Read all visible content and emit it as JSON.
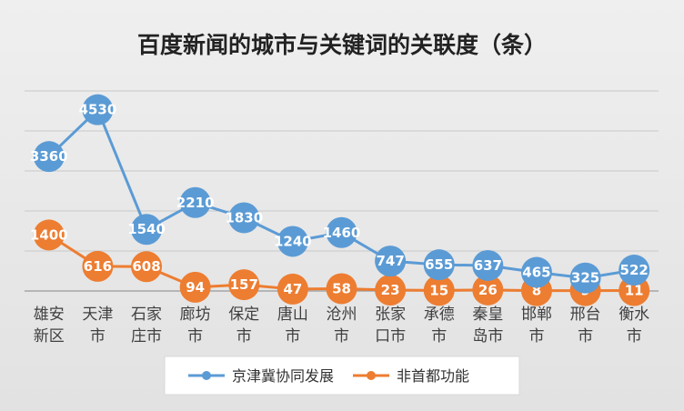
{
  "chart_data": {
    "type": "line",
    "title": "百度新闻的城市与关键词的关联度（条）",
    "categories": [
      "雄安新区",
      "天津市",
      "石家庄市",
      "廊坊市",
      "保定市",
      "唐山市",
      "沧州市",
      "张家口市",
      "承德市",
      "秦皇岛市",
      "邯郸市",
      "邢台市",
      "衡水市"
    ],
    "category_lines": [
      [
        "雄安",
        "新区"
      ],
      [
        "天津",
        "市"
      ],
      [
        "石家",
        "庄市"
      ],
      [
        "廊坊",
        "市"
      ],
      [
        "保定",
        "市"
      ],
      [
        "唐山",
        "市"
      ],
      [
        "沧州",
        "市"
      ],
      [
        "张家",
        "口市"
      ],
      [
        "承德",
        "市"
      ],
      [
        "秦皇",
        "岛市"
      ],
      [
        "邯郸",
        "市"
      ],
      [
        "邢台",
        "市"
      ],
      [
        "衡水",
        "市"
      ]
    ],
    "series": [
      {
        "name": "京津冀协同发展",
        "color": "#5b9bd5",
        "values": [
          3360,
          4530,
          1540,
          2210,
          1830,
          1240,
          1460,
          747,
          655,
          637,
          465,
          325,
          522
        ]
      },
      {
        "name": "非首都功能",
        "color": "#ed7d31",
        "values": [
          1400,
          616,
          608,
          94,
          157,
          47,
          58,
          23,
          15,
          26,
          8,
          9,
          11
        ]
      }
    ],
    "ylim": [
      0,
      5000
    ],
    "grid": true,
    "legend_position": "bottom"
  }
}
